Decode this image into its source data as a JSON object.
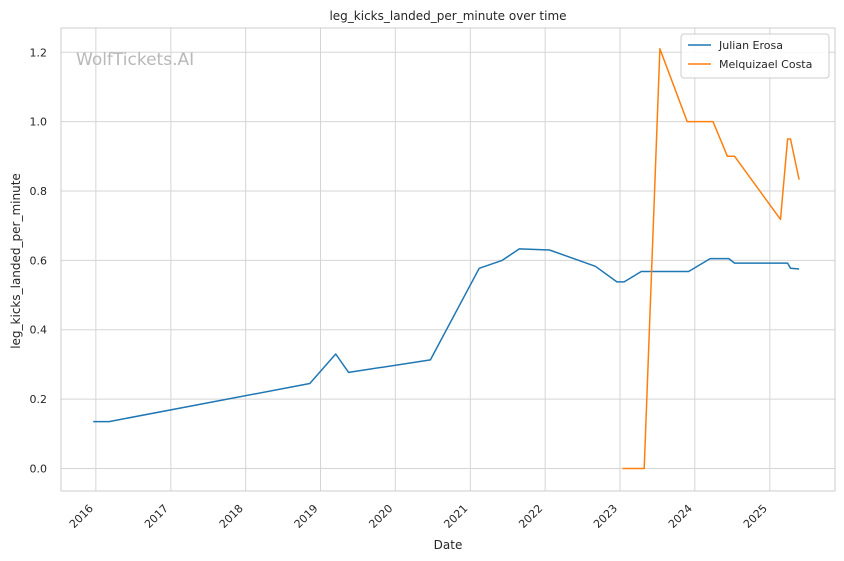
{
  "chart_data": {
    "type": "line",
    "title": "leg_kicks_landed_per_minute over time",
    "xlabel": "Date",
    "ylabel": "leg_kicks_landed_per_minute",
    "watermark": "WolfTickets.AI",
    "x_ticks": [
      "2016",
      "2017",
      "2018",
      "2019",
      "2020",
      "2021",
      "2022",
      "2023",
      "2024",
      "2025"
    ],
    "y_ticks": [
      "0.0",
      "0.2",
      "0.4",
      "0.6",
      "0.8",
      "1.0",
      "1.2"
    ],
    "xlim": [
      "2015-07-15",
      "2025-11-15"
    ],
    "ylim": [
      -0.065,
      1.27
    ],
    "grid": true,
    "legend_position": "top-right",
    "series": [
      {
        "name": "Julian Erosa",
        "color": "#1f77b4",
        "points": [
          [
            "2015-12-19",
            0.135
          ],
          [
            "2016-03-05",
            0.135
          ],
          [
            "2018-11-10",
            0.245
          ],
          [
            "2019-03-16",
            0.33
          ],
          [
            "2019-05-18",
            0.277
          ],
          [
            "2020-06-20",
            0.313
          ],
          [
            "2021-02-13",
            0.577
          ],
          [
            "2021-06-05",
            0.6
          ],
          [
            "2021-08-28",
            0.633
          ],
          [
            "2022-01-22",
            0.63
          ],
          [
            "2022-09-03",
            0.583
          ],
          [
            "2022-12-17",
            0.538
          ],
          [
            "2023-01-21",
            0.538
          ],
          [
            "2023-04-15",
            0.568
          ],
          [
            "2023-12-02",
            0.568
          ],
          [
            "2024-03-16",
            0.605
          ],
          [
            "2024-06-15",
            0.605
          ],
          [
            "2024-07-13",
            0.592
          ],
          [
            "2025-03-29",
            0.592
          ],
          [
            "2025-04-12",
            0.577
          ],
          [
            "2025-05-24",
            0.575
          ]
        ]
      },
      {
        "name": "Melquizael Costa",
        "color": "#ff7f0e",
        "points": [
          [
            "2023-01-14",
            0.0
          ],
          [
            "2023-04-29",
            0.0
          ],
          [
            "2023-07-15",
            1.21
          ],
          [
            "2023-11-25",
            1.0
          ],
          [
            "2024-03-30",
            1.0
          ],
          [
            "2024-06-08",
            0.9
          ],
          [
            "2024-07-13",
            0.9
          ],
          [
            "2025-02-22",
            0.718
          ],
          [
            "2025-03-29",
            0.95
          ],
          [
            "2025-04-12",
            0.95
          ],
          [
            "2025-05-24",
            0.833
          ]
        ]
      }
    ]
  }
}
